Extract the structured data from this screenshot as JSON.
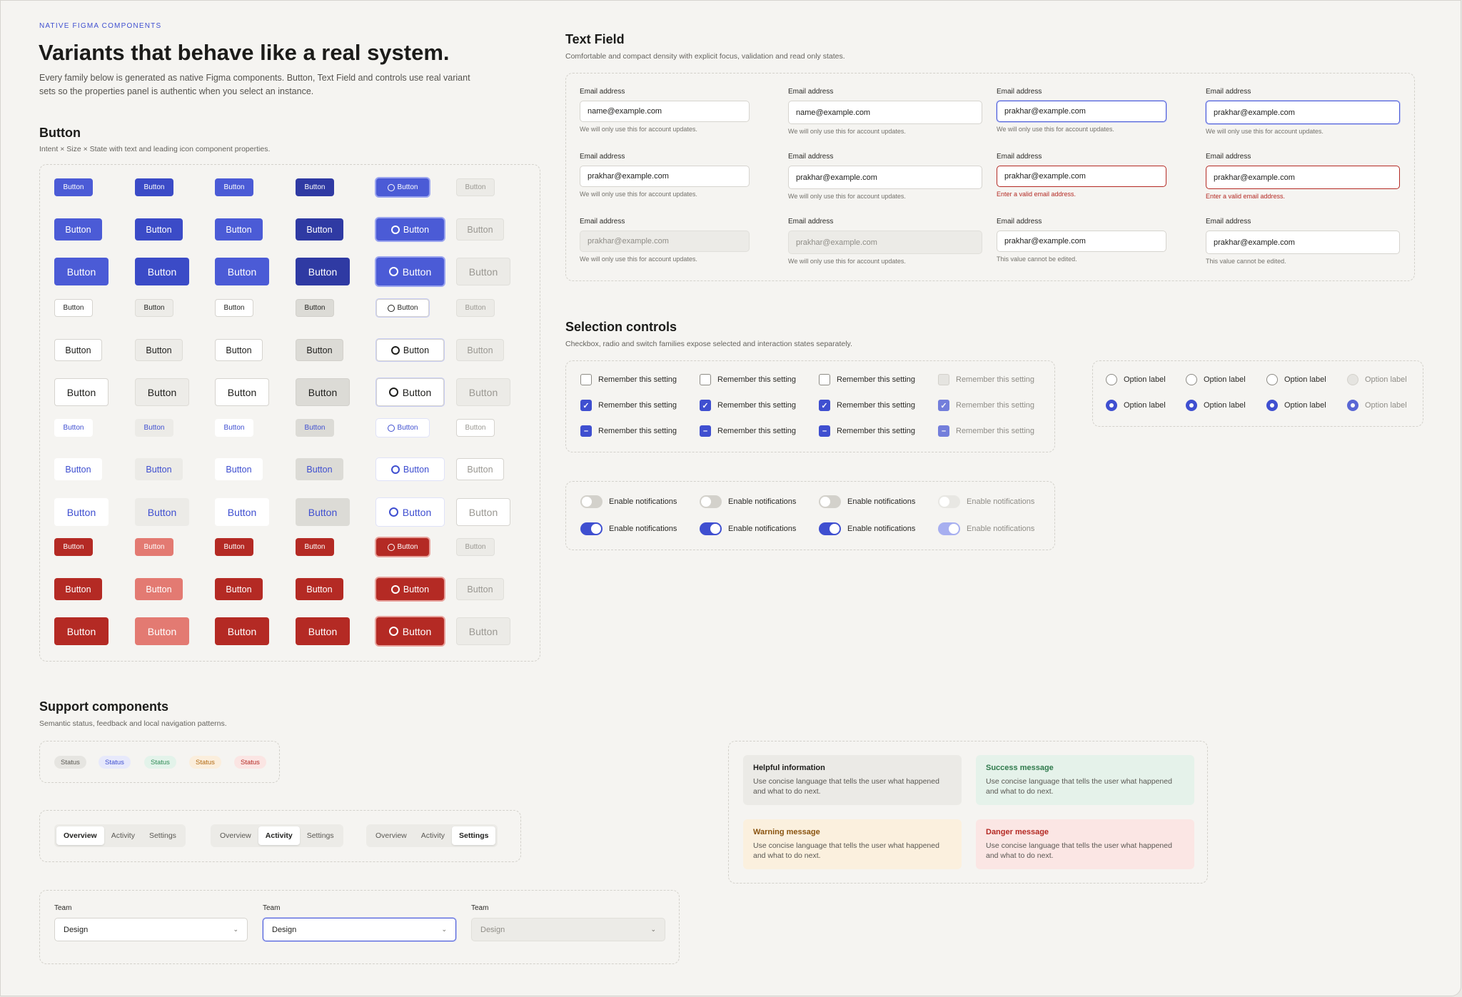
{
  "header": {
    "eyebrow": "NATIVE FIGMA COMPONENTS",
    "title": "Variants that behave like a real system.",
    "lead_1": "Every family below is generated as native Figma components. Button, Text Field and controls use real variant",
    "lead_2": "sets so the properties panel is authentic when you select an instance."
  },
  "button_section": {
    "title": "Button",
    "subtitle": "Intent × Size × State with text and leading icon component properties.",
    "label": "Button"
  },
  "textfield_section": {
    "title": "Text Field",
    "subtitle": "Comfortable and compact density with explicit focus, validation and read only states.",
    "label": "Email address",
    "value_default": "name@example.com",
    "value_filled": "prakhar@example.com",
    "help": "We will only use this for account updates.",
    "error": "Enter a valid email address.",
    "readonly_help": "This value cannot be edited."
  },
  "selection_section": {
    "title": "Selection controls",
    "subtitle": "Checkbox, radio and switch families expose selected and interaction states separately.",
    "checkbox_label": "Remember this setting",
    "radio_label": "Option label",
    "switch_label": "Enable notifications",
    "check_glyph": "✓",
    "indeterminate_glyph": "–"
  },
  "support_section": {
    "title": "Support components",
    "subtitle": "Semantic status, feedback and local navigation patterns.",
    "badges": [
      "Status",
      "Status",
      "Status",
      "Status",
      "Status"
    ],
    "badge_colors": [
      {
        "bg": "#e6e5e1",
        "fg": "#5a5853"
      },
      {
        "bg": "#e7e9fb",
        "fg": "#3f4fd0"
      },
      {
        "bg": "#e3f3ea",
        "fg": "#2f8a55"
      },
      {
        "bg": "#fbeedc",
        "fg": "#b26a12"
      },
      {
        "bg": "#fbe5e3",
        "fg": "#b42a24"
      }
    ],
    "tabs": [
      "Overview",
      "Activity",
      "Settings"
    ],
    "select_label": "Team",
    "select_value": "Design",
    "chevron_icon": "chevron-down-icon",
    "chevron_glyph": "⌄",
    "alerts": [
      {
        "title": "Helpful information",
        "desc_1": "Use concise language that tells the user what happened",
        "desc_2": "and what to do next.",
        "bg": "#ebeae6",
        "fg": "#1f1f1d"
      },
      {
        "title": "Success message",
        "desc_1": "Use concise language that tells the user what happened",
        "desc_2": "and what to do next.",
        "bg": "#e5f2ea",
        "fg": "#2f7a4c"
      },
      {
        "title": "Warning message",
        "desc_1": "Use concise language that tells the user what happened",
        "desc_2": "and what to do next.",
        "bg": "#fbf0de",
        "fg": "#8a5410"
      },
      {
        "title": "Danger message",
        "desc_1": "Use concise language that tells the user what happened",
        "desc_2": "and what to do next.",
        "bg": "#fbe6e4",
        "fg": "#b42a24"
      }
    ]
  },
  "colors": {
    "accent": "#4b5bd6",
    "danger": "#b42a24",
    "background": "#f5f4f1"
  }
}
